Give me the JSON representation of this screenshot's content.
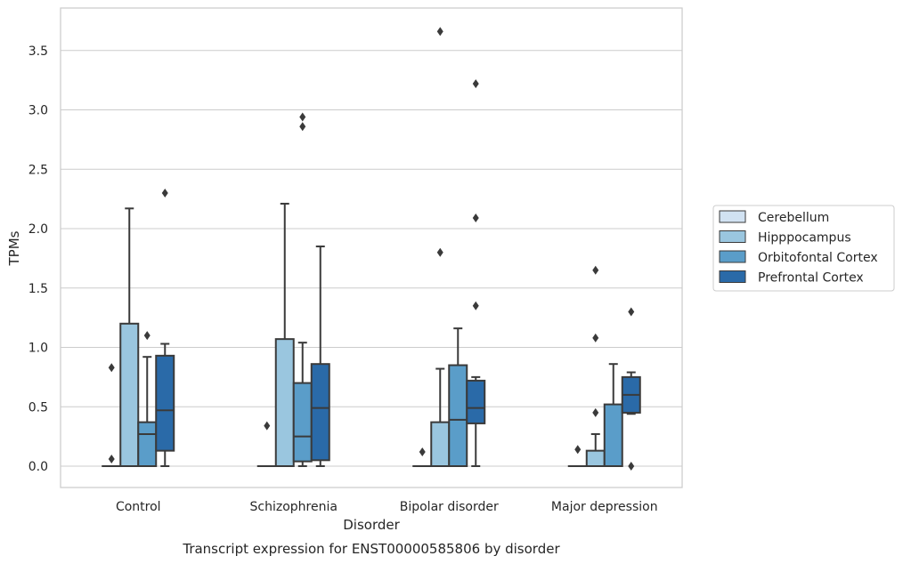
{
  "chart_data": {
    "type": "box",
    "caption": "Transcript expression for ENST00000585806 by disorder",
    "xlabel": "Disorder",
    "ylabel": "TPMs",
    "ylim": [
      -0.18,
      3.85
    ],
    "yticks": [
      "0.0",
      "0.5",
      "1.0",
      "1.5",
      "2.0",
      "2.5",
      "3.0",
      "3.5"
    ],
    "grid": "horizontal",
    "legend_position": "right",
    "categories": [
      "Control",
      "Schizophrenia",
      "Bipolar disorder",
      "Major depression"
    ],
    "series": [
      {
        "name": "Cerebellum",
        "color": "#d1e2f2",
        "boxes": [
          {
            "q1": 0,
            "median": 0,
            "q3": 0,
            "whisker_low": 0,
            "whisker_high": 0,
            "outliers": [
              0.06,
              0.83
            ]
          },
          {
            "q1": 0,
            "median": 0,
            "q3": 0,
            "whisker_low": 0,
            "whisker_high": 0,
            "outliers": [
              0.34
            ]
          },
          {
            "q1": 0,
            "median": 0,
            "q3": 0,
            "whisker_low": 0,
            "whisker_high": 0,
            "outliers": [
              0.12
            ]
          },
          {
            "q1": 0,
            "median": 0,
            "q3": 0,
            "whisker_low": 0,
            "whisker_high": 0,
            "outliers": [
              0.14
            ]
          }
        ]
      },
      {
        "name": "Hipppocampus",
        "color": "#9ac6df",
        "boxes": [
          {
            "q1": 0,
            "median": 0,
            "q3": 1.2,
            "whisker_low": 0,
            "whisker_high": 2.17,
            "outliers": []
          },
          {
            "q1": 0,
            "median": 0,
            "q3": 1.07,
            "whisker_low": 0,
            "whisker_high": 2.21,
            "outliers": []
          },
          {
            "q1": 0,
            "median": 0,
            "q3": 0.37,
            "whisker_low": 0,
            "whisker_high": 0.82,
            "outliers": [
              1.8,
              3.66
            ]
          },
          {
            "q1": 0,
            "median": 0,
            "q3": 0.13,
            "whisker_low": 0,
            "whisker_high": 0.27,
            "outliers": [
              0.45,
              1.08,
              1.65
            ]
          }
        ]
      },
      {
        "name": "Orbitofontal Cortex",
        "color": "#5a9dc9",
        "boxes": [
          {
            "q1": 0,
            "median": 0.27,
            "q3": 0.37,
            "whisker_low": 0,
            "whisker_high": 0.92,
            "outliers": [
              1.1
            ]
          },
          {
            "q1": 0.04,
            "median": 0.25,
            "q3": 0.7,
            "whisker_low": 0,
            "whisker_high": 1.04,
            "outliers": [
              2.86,
              2.94
            ]
          },
          {
            "q1": 0,
            "median": 0.39,
            "q3": 0.85,
            "whisker_low": 0,
            "whisker_high": 1.16,
            "outliers": []
          },
          {
            "q1": 0,
            "median": 0,
            "q3": 0.52,
            "whisker_low": 0,
            "whisker_high": 0.86,
            "outliers": []
          }
        ]
      },
      {
        "name": "Prefrontal Cortex",
        "color": "#2a6aa8",
        "boxes": [
          {
            "q1": 0.13,
            "median": 0.47,
            "q3": 0.93,
            "whisker_low": 0,
            "whisker_high": 1.03,
            "outliers": [
              2.3
            ]
          },
          {
            "q1": 0.05,
            "median": 0.49,
            "q3": 0.86,
            "whisker_low": 0,
            "whisker_high": 1.85,
            "outliers": []
          },
          {
            "q1": 0.36,
            "median": 0.49,
            "q3": 0.72,
            "whisker_low": 0,
            "whisker_high": 0.75,
            "outliers": [
              1.35,
              2.09,
              3.22
            ]
          },
          {
            "q1": 0.45,
            "median": 0.6,
            "q3": 0.75,
            "whisker_low": 0.44,
            "whisker_high": 0.79,
            "outliers": [
              0,
              1.3
            ]
          }
        ]
      }
    ]
  }
}
